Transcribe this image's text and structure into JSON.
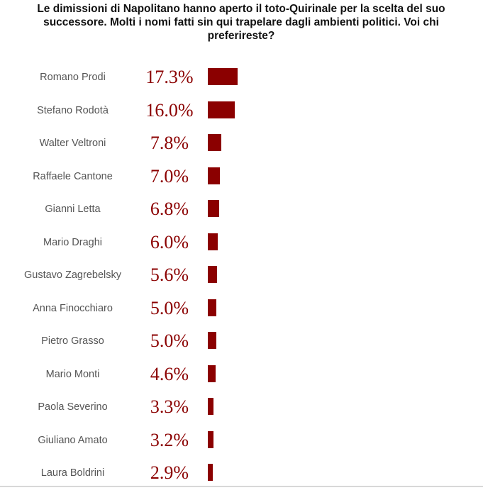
{
  "question": "Le dimissioni di Napolitano hanno aperto il toto-Quirinale per la scelta del suo successore. Molti i nomi fatti sin qui trapelare dagli ambienti politici. Voi chi preferireste?",
  "colors": {
    "bar": "#8b0000",
    "percent_text": "#8b0000",
    "name_text": "#555555"
  },
  "chart_data": {
    "type": "bar",
    "orientation": "horizontal",
    "title": "Le dimissioni di Napolitano hanno aperto il toto-Quirinale per la scelta del suo successore. Molti i nomi fatti sin qui trapelare dagli ambienti politici. Voi chi preferireste?",
    "categories": [
      "Romano Prodi",
      "Stefano Rodotà",
      "Walter Veltroni",
      "Raffaele Cantone",
      "Gianni Letta",
      "Mario Draghi",
      "Gustavo Zagrebelsky",
      "Anna Finocchiaro",
      "Pietro Grasso",
      "Mario Monti",
      "Paola Severino",
      "Giuliano Amato",
      "Laura Boldrini"
    ],
    "values": [
      17.3,
      16.0,
      7.8,
      7.0,
      6.8,
      6.0,
      5.6,
      5.0,
      5.0,
      4.6,
      3.3,
      3.2,
      2.9
    ],
    "labels": [
      "17.3%",
      "16.0%",
      "7.8%",
      "7.0%",
      "6.8%",
      "6.0%",
      "5.6%",
      "5.0%",
      "5.0%",
      "4.6%",
      "3.3%",
      "3.2%",
      "2.9%"
    ],
    "unit": "%",
    "grid": false,
    "legend": "none"
  }
}
